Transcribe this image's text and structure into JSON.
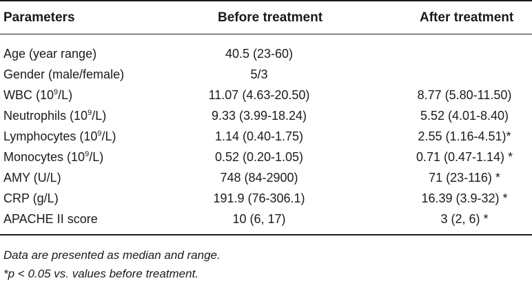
{
  "table": {
    "headers": {
      "parameters": "Parameters",
      "before": "Before treatment",
      "after": "After treatment"
    },
    "rows": [
      {
        "param": "Age (year range)",
        "unit_pre": "",
        "unit_sup": "",
        "unit_post": "",
        "before": "40.5 (23-60)",
        "after": ""
      },
      {
        "param": "Gender (male/female)",
        "unit_pre": "",
        "unit_sup": "",
        "unit_post": "",
        "before": "5/3",
        "after": ""
      },
      {
        "param": "WBC (10",
        "unit_sup": "9",
        "unit_post": "/L)",
        "before": "11.07 (4.63-20.50)",
        "after": "8.77 (5.80-11.50)"
      },
      {
        "param": "Neutrophils (10",
        "unit_sup": "9",
        "unit_post": "/L)",
        "before": "9.33 (3.99-18.24)",
        "after": "5.52 (4.01-8.40)"
      },
      {
        "param": "Lymphocytes (10",
        "unit_sup": "9",
        "unit_post": "/L)",
        "before": "1.14 (0.40-1.75)",
        "after": "2.55 (1.16-4.51)*"
      },
      {
        "param": "Monocytes (10",
        "unit_sup": "9",
        "unit_post": "/L)",
        "before": "0.52 (0.20-1.05)",
        "after": "0.71 (0.47-1.14) *"
      },
      {
        "param": "AMY (U/L)",
        "unit_sup": "",
        "unit_post": "",
        "before": "748 (84-2900)",
        "after": "71 (23-116) *"
      },
      {
        "param": "CRP (g/L)",
        "unit_sup": "",
        "unit_post": "",
        "before": "191.9 (76-306.1)",
        "after": "16.39 (3.9-32) *"
      },
      {
        "param": "APACHE II score",
        "unit_sup": "",
        "unit_post": "",
        "before": "10 (6, 17)",
        "after": "3 (2, 6) *"
      }
    ]
  },
  "notes": {
    "line1": "Data are presented as median and range.",
    "line2": "*p < 0.05 vs. values before treatment."
  }
}
